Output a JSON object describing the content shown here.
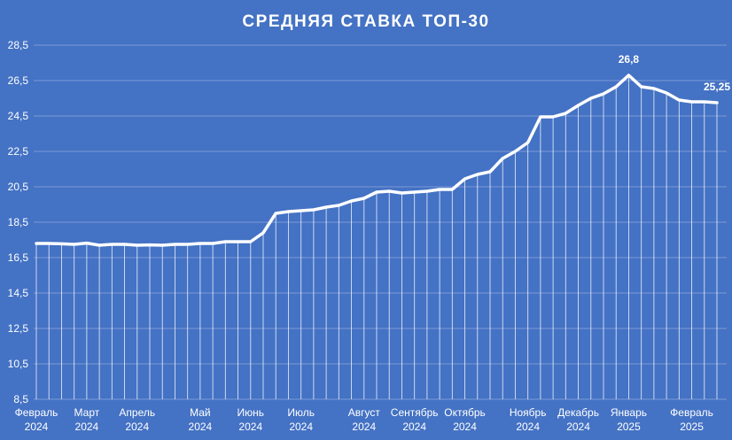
{
  "chart_data": {
    "type": "line",
    "title": "СРЕДНЯЯ СТАВКА ТОП-30",
    "xlabel": "",
    "ylabel": "",
    "ylim": [
      8.5,
      28.5
    ],
    "yticks": [
      "8,5",
      "10,5",
      "12,5",
      "14,5",
      "16,5",
      "18,5",
      "20,5",
      "22,5",
      "24,5",
      "26,5",
      "28,5"
    ],
    "grid": true,
    "x_month_labels": [
      {
        "month": "Февраль",
        "year": "2024",
        "index": 0
      },
      {
        "month": "Март",
        "year": "2024",
        "index": 4
      },
      {
        "month": "Апрель",
        "year": "2024",
        "index": 8
      },
      {
        "month": "Май",
        "year": "2024",
        "index": 13
      },
      {
        "month": "Июнь",
        "year": "2024",
        "index": 17
      },
      {
        "month": "Июль",
        "year": "2024",
        "index": 21
      },
      {
        "month": "Август",
        "year": "2024",
        "index": 26
      },
      {
        "month": "Сентябрь",
        "year": "2024",
        "index": 30
      },
      {
        "month": "Октябрь",
        "year": "2024",
        "index": 34
      },
      {
        "month": "Ноябрь",
        "year": "2024",
        "index": 39
      },
      {
        "month": "Декабрь",
        "year": "2024",
        "index": 43
      },
      {
        "month": "Январь",
        "year": "2025",
        "index": 47
      },
      {
        "month": "Февраль",
        "year": "2025",
        "index": 52
      }
    ],
    "series": [
      {
        "values": [
          17.3,
          17.3,
          17.28,
          17.25,
          17.32,
          17.2,
          17.25,
          17.25,
          17.2,
          17.22,
          17.2,
          17.25,
          17.25,
          17.3,
          17.3,
          17.4,
          17.4,
          17.4,
          17.9,
          19.0,
          19.1,
          19.15,
          19.2,
          19.35,
          19.45,
          19.7,
          19.85,
          20.2,
          20.25,
          20.15,
          20.2,
          20.25,
          20.35,
          20.35,
          20.95,
          21.2,
          21.35,
          22.1,
          22.5,
          23.0,
          24.45,
          24.45,
          24.65,
          25.1,
          25.5,
          25.75,
          26.15,
          26.8,
          26.15,
          26.05,
          25.8,
          25.4,
          25.3,
          25.3,
          25.25
        ],
        "color": "#ffffff"
      }
    ],
    "data_labels": [
      {
        "index": 47,
        "text": "26,8"
      },
      {
        "index": 54,
        "text": "25,25"
      }
    ]
  }
}
